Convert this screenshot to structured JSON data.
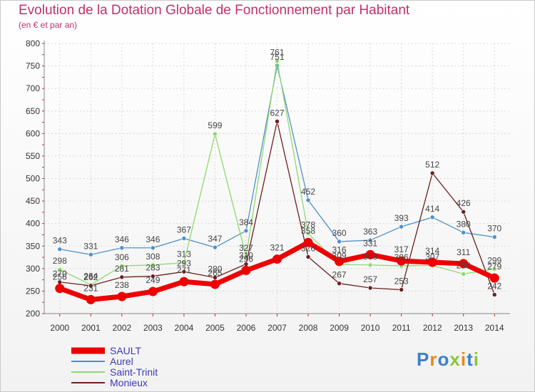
{
  "chart_data": {
    "type": "line",
    "title": "Evolution de la Dotation Globale de Fonctionnement par Habitant",
    "subtitle": "(en € et par an)",
    "xlabel": "",
    "ylabel": "",
    "x": [
      "2000",
      "2001",
      "2002",
      "2003",
      "2004",
      "2005",
      "2006",
      "2007",
      "2008",
      "2009",
      "2010",
      "2011",
      "2012",
      "2013",
      "2014"
    ],
    "yticks": [
      200,
      250,
      300,
      350,
      400,
      450,
      500,
      550,
      600,
      650,
      700,
      750,
      800
    ],
    "ylim": [
      200,
      800
    ],
    "grid": true,
    "legend_position": "bottom-left",
    "series": [
      {
        "name": "SAULT",
        "color": "#ee0000",
        "values": [
          256,
          231,
          238,
          249,
          271,
          265,
          296,
          321,
          358,
          316,
          331,
          317,
          314,
          311,
          279
        ]
      },
      {
        "name": "Aurel",
        "color": "#4f90c8",
        "values": [
          343,
          331,
          346,
          346,
          367,
          347,
          384,
          751,
          452,
          360,
          363,
          393,
          414,
          380,
          370
        ]
      },
      {
        "name": "Saint-Trinit",
        "color": "#8fd870",
        "values": [
          298,
          264,
          306,
          308,
          313,
          599,
          327,
          761,
          378,
          309,
          308,
          306,
          307,
          288,
          299
        ]
      },
      {
        "name": "Monieux",
        "color": "#6e1e1e",
        "values": [
          270,
          262,
          281,
          283,
          293,
          280,
          310,
          627,
          326,
          267,
          257,
          253,
          512,
          426,
          242
        ]
      }
    ]
  },
  "logo": {
    "letters": [
      "P",
      "r",
      "o",
      "x",
      "i",
      "t",
      "i"
    ]
  }
}
